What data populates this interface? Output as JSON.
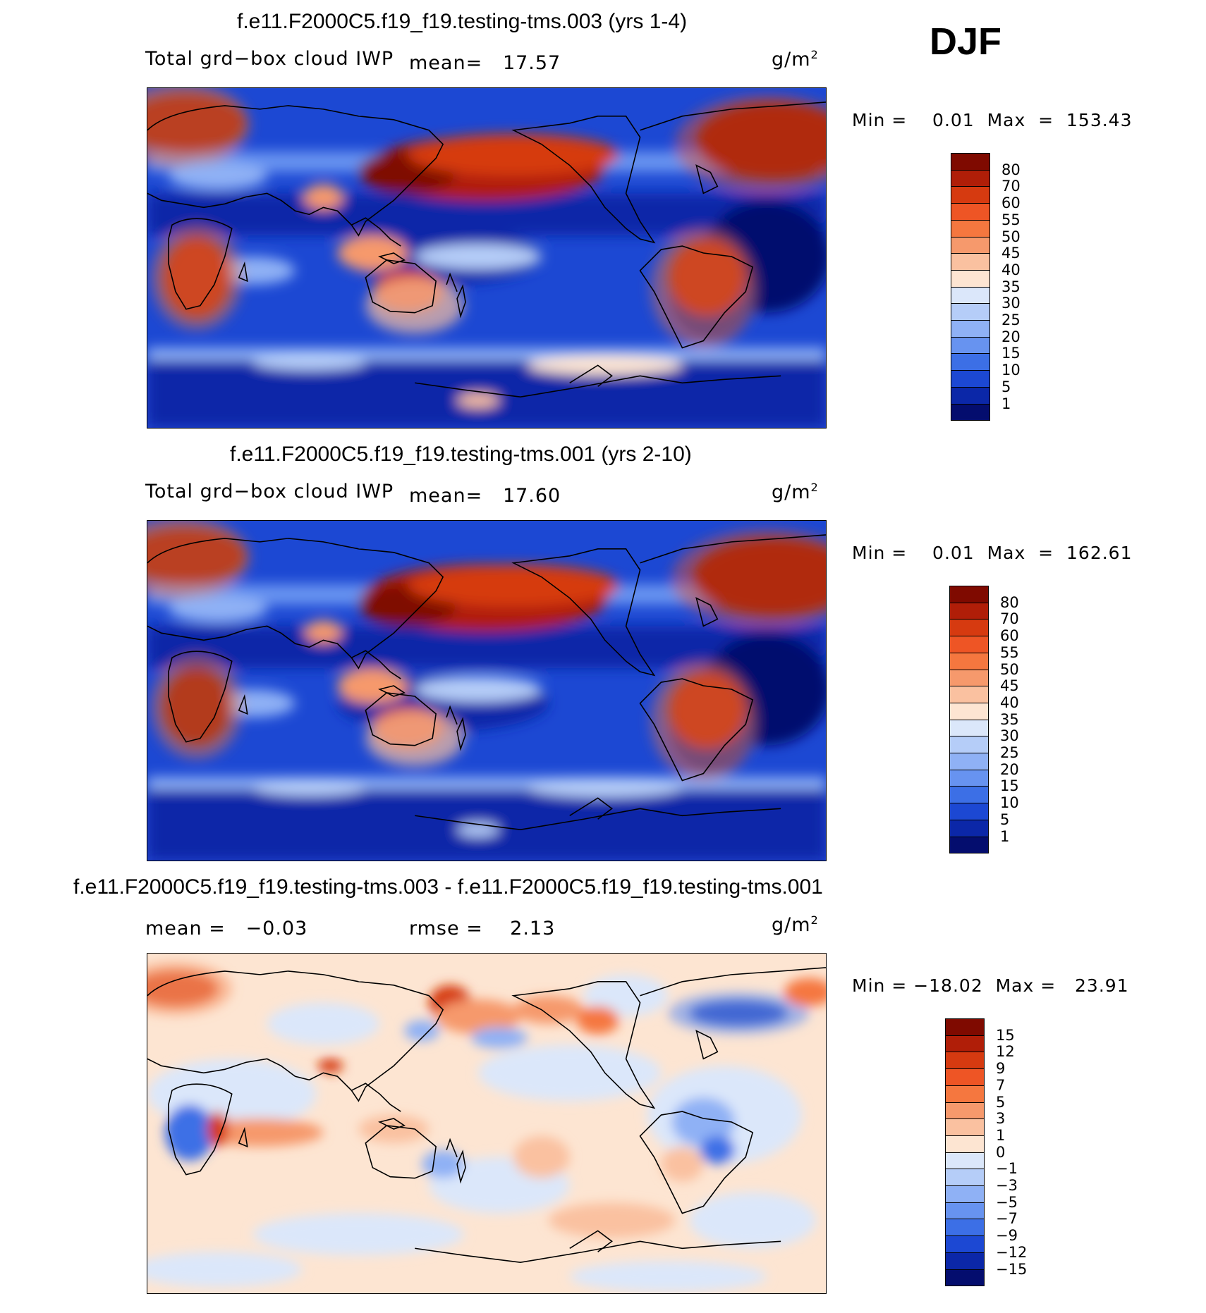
{
  "header": {
    "season": "DJF"
  },
  "panels": [
    {
      "title": "f.e11.F2000C5.f19_f19.testing-tms.003 (yrs 1-4)",
      "variable": "Total grd−box cloud IWP",
      "stat1": "mean=   17.57",
      "stat2": "",
      "units": "g/m",
      "units_exp": "2",
      "minmax": "Min =    0.01  Max  =  153.43",
      "colorbar": {
        "labels": [
          "80",
          "70",
          "60",
          "55",
          "50",
          "45",
          "40",
          "35",
          "30",
          "25",
          "20",
          "15",
          "10",
          "5",
          "1"
        ],
        "colors": [
          "#7f0a00",
          "#b01e08",
          "#d63a10",
          "#ee5525",
          "#f5773f",
          "#f6996c",
          "#fac1a0",
          "#fde5d2",
          "#dbe7fa",
          "#b5cdf8",
          "#8fb1f5",
          "#6793f0",
          "#3c6fe6",
          "#1c48d3",
          "#0b27a8",
          "#040d6e"
        ]
      }
    },
    {
      "title": "f.e11.F2000C5.f19_f19.testing-tms.001 (yrs 2-10)",
      "variable": "Total grd−box cloud IWP",
      "stat1": "mean=   17.60",
      "stat2": "",
      "units": "g/m",
      "units_exp": "2",
      "minmax": "Min =    0.01  Max  =  162.61",
      "colorbar": {
        "labels": [
          "80",
          "70",
          "60",
          "55",
          "50",
          "45",
          "40",
          "35",
          "30",
          "25",
          "20",
          "15",
          "10",
          "5",
          "1"
        ],
        "colors": [
          "#7f0a00",
          "#b01e08",
          "#d63a10",
          "#ee5525",
          "#f5773f",
          "#f6996c",
          "#fac1a0",
          "#fde5d2",
          "#dbe7fa",
          "#b5cdf8",
          "#8fb1f5",
          "#6793f0",
          "#3c6fe6",
          "#1c48d3",
          "#0b27a8",
          "#040d6e"
        ]
      }
    },
    {
      "title": "f.e11.F2000C5.f19_f19.testing-tms.003 - f.e11.F2000C5.f19_f19.testing-tms.001",
      "variable": "",
      "stat1": "mean =   −0.03",
      "stat2": "rmse =    2.13",
      "units": "g/m",
      "units_exp": "2",
      "minmax": "Min = −18.02  Max =   23.91",
      "colorbar": {
        "labels": [
          "15",
          "12",
          "9",
          "7",
          "5",
          "3",
          "1",
          "0",
          "−1",
          "−3",
          "−5",
          "−7",
          "−9",
          "−12",
          "−15"
        ],
        "colors": [
          "#7f0a00",
          "#b01e08",
          "#d63a10",
          "#ee5525",
          "#f5773f",
          "#f6996c",
          "#fac1a0",
          "#fde5d2",
          "#dbe7fa",
          "#b5cdf8",
          "#8fb1f5",
          "#6793f0",
          "#3c6fe6",
          "#1c48d3",
          "#0b27a8",
          "#040d6e"
        ]
      }
    }
  ]
}
